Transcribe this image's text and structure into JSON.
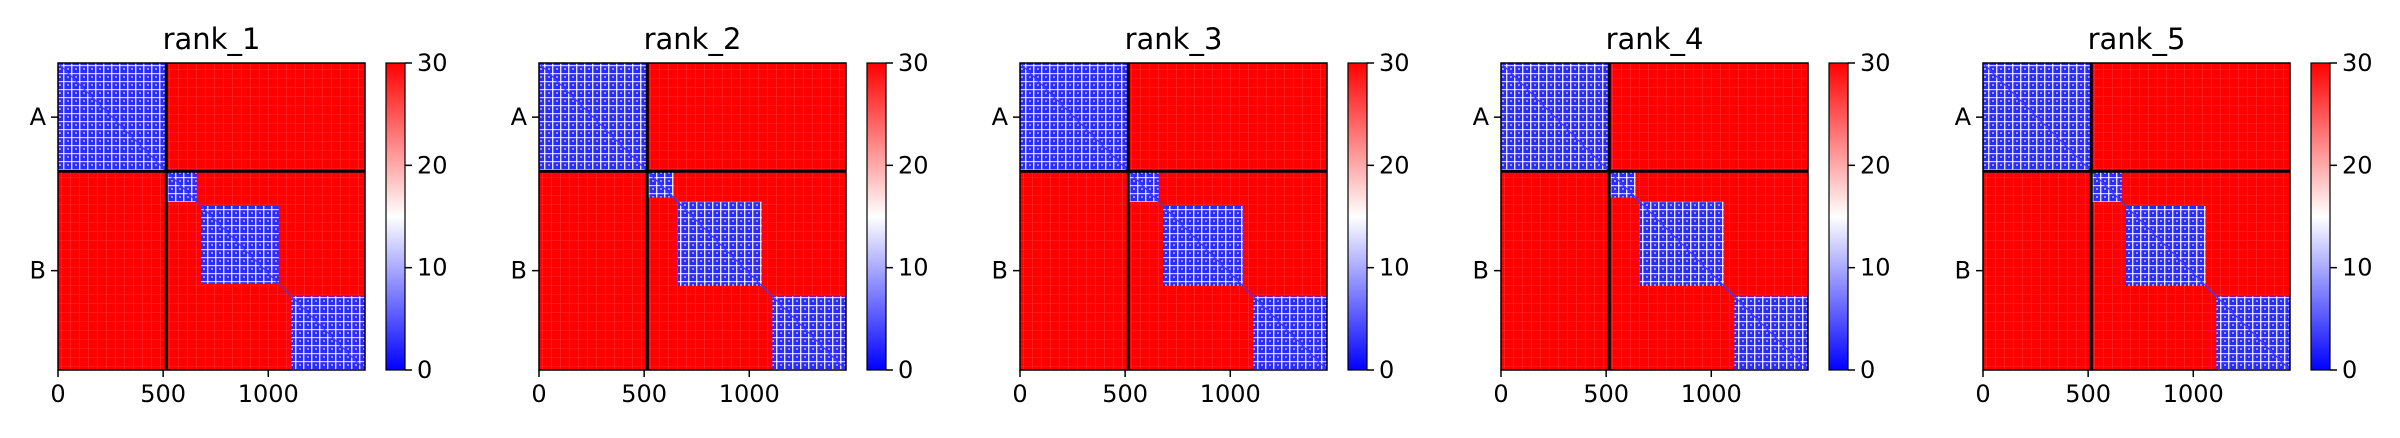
{
  "chart_data": [
    {
      "type": "heatmap",
      "title": "rank_1",
      "x_ticks": [
        0,
        500,
        1000
      ],
      "xlim": [
        0,
        1460
      ],
      "y_tick_labels": [
        "A",
        "B"
      ],
      "chain_boundary": 515,
      "colorbar": {
        "min": 0,
        "max": 30,
        "ticks": [
          0,
          10,
          20,
          30
        ],
        "colors": [
          "#0000ff",
          "#ffffff",
          "#ff0000"
        ]
      },
      "low_error_blocks": [
        [
          0,
          515
        ],
        [
          520,
          660
        ],
        [
          680,
          1050
        ],
        [
          1110,
          1460
        ]
      ]
    },
    {
      "type": "heatmap",
      "title": "rank_2",
      "x_ticks": [
        0,
        500,
        1000
      ],
      "xlim": [
        0,
        1460
      ],
      "y_tick_labels": [
        "A",
        "B"
      ],
      "chain_boundary": 515,
      "colorbar": {
        "min": 0,
        "max": 30,
        "ticks": [
          0,
          10,
          20,
          30
        ],
        "colors": [
          "#0000ff",
          "#ffffff",
          "#ff0000"
        ]
      },
      "low_error_blocks": [
        [
          0,
          515
        ],
        [
          520,
          640
        ],
        [
          660,
          1060
        ],
        [
          1110,
          1460
        ]
      ]
    },
    {
      "type": "heatmap",
      "title": "rank_3",
      "x_ticks": [
        0,
        500,
        1000
      ],
      "xlim": [
        0,
        1460
      ],
      "y_tick_labels": [
        "A",
        "B"
      ],
      "chain_boundary": 515,
      "colorbar": {
        "min": 0,
        "max": 30,
        "ticks": [
          0,
          10,
          20,
          30
        ],
        "colors": [
          "#0000ff",
          "#ffffff",
          "#ff0000"
        ]
      },
      "low_error_blocks": [
        [
          0,
          515
        ],
        [
          520,
          660
        ],
        [
          680,
          1060
        ],
        [
          1110,
          1460
        ]
      ]
    },
    {
      "type": "heatmap",
      "title": "rank_4",
      "x_ticks": [
        0,
        500,
        1000
      ],
      "xlim": [
        0,
        1460
      ],
      "y_tick_labels": [
        "A",
        "B"
      ],
      "chain_boundary": 515,
      "colorbar": {
        "min": 0,
        "max": 30,
        "ticks": [
          0,
          10,
          20,
          30
        ],
        "colors": [
          "#0000ff",
          "#ffffff",
          "#ff0000"
        ]
      },
      "low_error_blocks": [
        [
          0,
          515
        ],
        [
          520,
          640
        ],
        [
          660,
          1060
        ],
        [
          1110,
          1460
        ]
      ]
    },
    {
      "type": "heatmap",
      "title": "rank_5",
      "x_ticks": [
        0,
        500,
        1000
      ],
      "xlim": [
        0,
        1460
      ],
      "y_tick_labels": [
        "A",
        "B"
      ],
      "chain_boundary": 515,
      "colorbar": {
        "min": 0,
        "max": 30,
        "ticks": [
          0,
          10,
          20,
          30
        ],
        "colors": [
          "#0000ff",
          "#ffffff",
          "#ff0000"
        ]
      },
      "low_error_blocks": [
        [
          0,
          515
        ],
        [
          520,
          660
        ],
        [
          680,
          1060
        ],
        [
          1110,
          1460
        ]
      ]
    }
  ]
}
